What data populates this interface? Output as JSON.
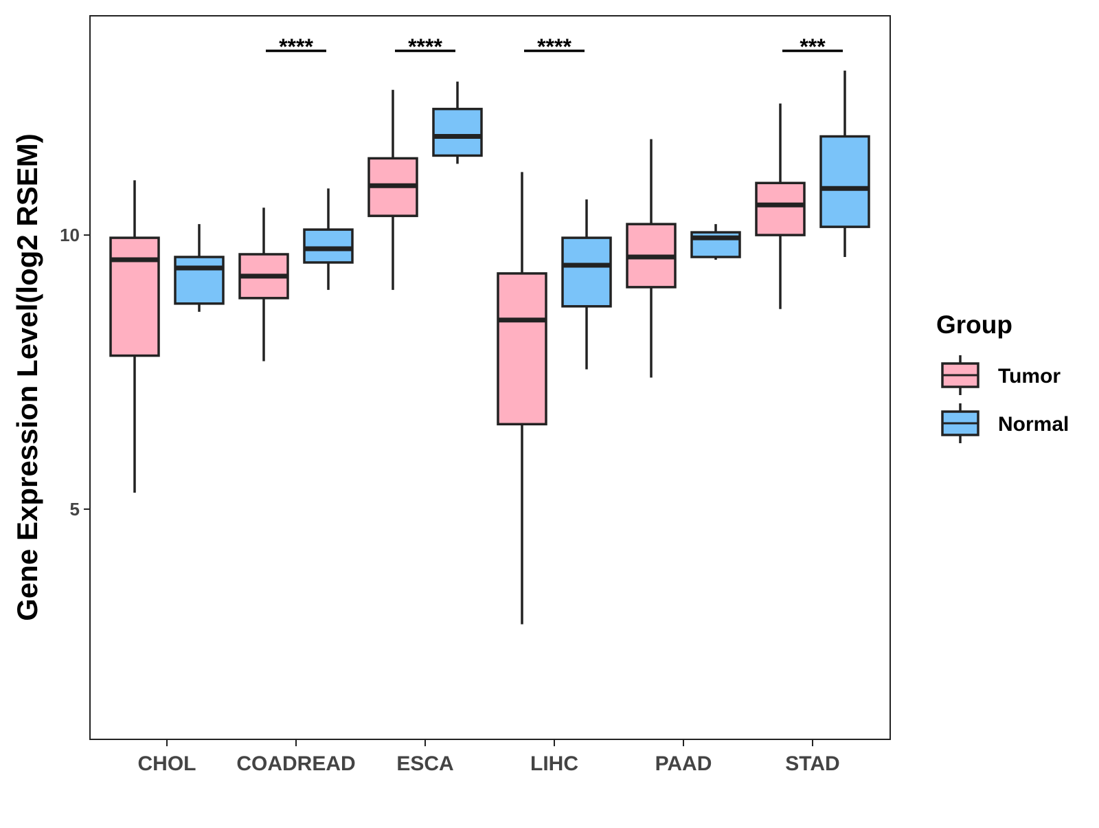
{
  "chart_data": {
    "type": "boxplot",
    "ylabel": "Gene Expression Level(log2 RSEM)",
    "xlabel": "",
    "ylim": [
      0.8,
      14.0
    ],
    "yticks": [
      5,
      10
    ],
    "grid": false,
    "legend_title": "Group",
    "legend_position": "right",
    "categories": [
      "CHOL",
      "COADREAD",
      "ESCA",
      "LIHC",
      "PAAD",
      "STAD"
    ],
    "series": [
      {
        "name": "Tumor",
        "color": "#FFB0C1",
        "boxes": [
          {
            "min": 5.3,
            "q1": 7.8,
            "median": 9.55,
            "q3": 9.95,
            "max": 11.0
          },
          {
            "min": 7.7,
            "q1": 8.85,
            "median": 9.25,
            "q3": 9.65,
            "max": 10.5
          },
          {
            "min": 9.0,
            "q1": 10.35,
            "median": 10.9,
            "q3": 11.4,
            "max": 12.65
          },
          {
            "min": 2.9,
            "q1": 6.55,
            "median": 8.45,
            "q3": 9.3,
            "max": 11.15
          },
          {
            "min": 7.4,
            "q1": 9.05,
            "median": 9.6,
            "q3": 10.2,
            "max": 11.75
          },
          {
            "min": 8.65,
            "q1": 10.0,
            "median": 10.55,
            "q3": 10.95,
            "max": 12.4
          }
        ]
      },
      {
        "name": "Normal",
        "color": "#7AC3F9",
        "boxes": [
          {
            "min": 8.6,
            "q1": 8.75,
            "median": 9.4,
            "q3": 9.6,
            "max": 10.2
          },
          {
            "min": 9.0,
            "q1": 9.5,
            "median": 9.75,
            "q3": 10.1,
            "max": 10.85
          },
          {
            "min": 11.3,
            "q1": 11.45,
            "median": 11.8,
            "q3": 12.3,
            "max": 12.8
          },
          {
            "min": 7.55,
            "q1": 8.7,
            "median": 9.45,
            "q3": 9.95,
            "max": 10.65
          },
          {
            "min": 9.55,
            "q1": 9.6,
            "median": 9.95,
            "q3": 10.05,
            "max": 10.2
          },
          {
            "min": 9.6,
            "q1": 10.15,
            "median": 10.85,
            "q3": 11.8,
            "max": 13.0
          }
        ]
      }
    ],
    "significance": [
      {
        "category": "COADREAD",
        "label": "****"
      },
      {
        "category": "ESCA",
        "label": "****"
      },
      {
        "category": "LIHC",
        "label": "****"
      },
      {
        "category": "STAD",
        "label": "***"
      }
    ]
  }
}
